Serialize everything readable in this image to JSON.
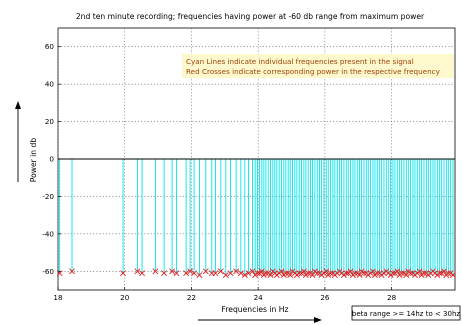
{
  "chart_data": {
    "type": "stem",
    "title": "2nd ten minute recording; frequencies having power at -60 db range from maximum power",
    "xlabel": "Frequencies in Hz",
    "ylabel": "Power in db",
    "xlim": [
      18,
      29.9
    ],
    "ylim": [
      -70,
      70
    ],
    "grid": true,
    "x_ticks": [
      "18",
      "20",
      "22",
      "24",
      "26",
      "28"
    ],
    "y_ticks": [
      "60",
      "40",
      "20",
      "0",
      "-20",
      "-40",
      "-60"
    ],
    "annotation_lines": [
      "Cyan Lines indicate individual frequencies present in the signal",
      "Red Crosses indicate corresponding power in the respective frequency"
    ],
    "range_box_text": "beta range >= 14hz to < 30hz",
    "colors": {
      "stem": "#00e5ee",
      "marker": "#e02020",
      "annotation_bg": "#fdf9cc",
      "annotation_text": "#a0420a"
    },
    "series": [
      {
        "values_note": "stem frequencies (Hz) with power (dB); stems rise from 0 down to the power value",
        "frequencies": [
          18.05,
          18.42,
          19.95,
          20.38,
          20.52,
          20.92,
          21.18,
          21.42,
          21.55,
          21.84,
          21.96,
          22.08,
          22.24,
          22.43,
          22.61,
          22.72,
          22.88,
          23.03,
          23.17,
          23.34,
          23.48,
          23.6,
          23.71,
          23.83,
          23.91,
          23.98,
          24.04,
          24.11,
          24.17,
          24.23,
          24.3,
          24.37,
          24.44,
          24.5,
          24.56,
          24.63,
          24.7,
          24.77,
          24.83,
          24.9,
          24.96,
          25.03,
          25.1,
          25.16,
          25.23,
          25.3,
          25.37,
          25.43,
          25.5,
          25.57,
          25.63,
          25.7,
          25.77,
          25.84,
          25.9,
          25.97,
          26.04,
          26.1,
          26.17,
          26.24,
          26.3,
          26.37,
          26.44,
          26.5,
          26.57,
          26.64,
          26.7,
          26.77,
          26.84,
          26.9,
          26.97,
          27.04,
          27.1,
          27.17,
          27.24,
          27.3,
          27.37,
          27.44,
          27.5,
          27.57,
          27.64,
          27.7,
          27.77,
          27.84,
          27.9,
          27.97,
          28.04,
          28.1,
          28.17,
          28.24,
          28.3,
          28.37,
          28.44,
          28.5,
          28.57,
          28.64,
          28.7,
          28.77,
          28.84,
          28.9,
          28.97,
          29.04,
          29.1,
          29.17,
          29.24,
          29.3,
          29.37,
          29.44,
          29.5,
          29.57,
          29.64,
          29.7,
          29.77,
          29.84
        ],
        "powers": [
          -61,
          -60,
          -61,
          -60,
          -61,
          -60,
          -61,
          -60,
          -61,
          -61,
          -60,
          -61,
          -62,
          -60,
          -61,
          -61,
          -60,
          -62,
          -61,
          -60,
          -61,
          -62,
          -61,
          -60,
          -62,
          -61,
          -61,
          -60,
          -62,
          -61,
          -61,
          -62,
          -60,
          -61,
          -62,
          -61,
          -60,
          -62,
          -61,
          -61,
          -62,
          -60,
          -61,
          -62,
          -61,
          -61,
          -60,
          -62,
          -61,
          -61,
          -62,
          -60,
          -61,
          -61,
          -62,
          -61,
          -60,
          -62,
          -61,
          -61,
          -62,
          -61,
          -60,
          -61,
          -62,
          -61,
          -61,
          -60,
          -62,
          -61,
          -61,
          -62,
          -60,
          -61,
          -61,
          -62,
          -61,
          -60,
          -62,
          -61,
          -61,
          -62,
          -61,
          -60,
          -61,
          -62,
          -61,
          -61,
          -60,
          -62,
          -61,
          -61,
          -62,
          -60,
          -61,
          -61,
          -62,
          -61,
          -60,
          -62,
          -61,
          -61,
          -62,
          -61,
          -60,
          -61,
          -62,
          -61,
          -61,
          -60,
          -62,
          -61,
          -61,
          -62
        ]
      }
    ]
  }
}
